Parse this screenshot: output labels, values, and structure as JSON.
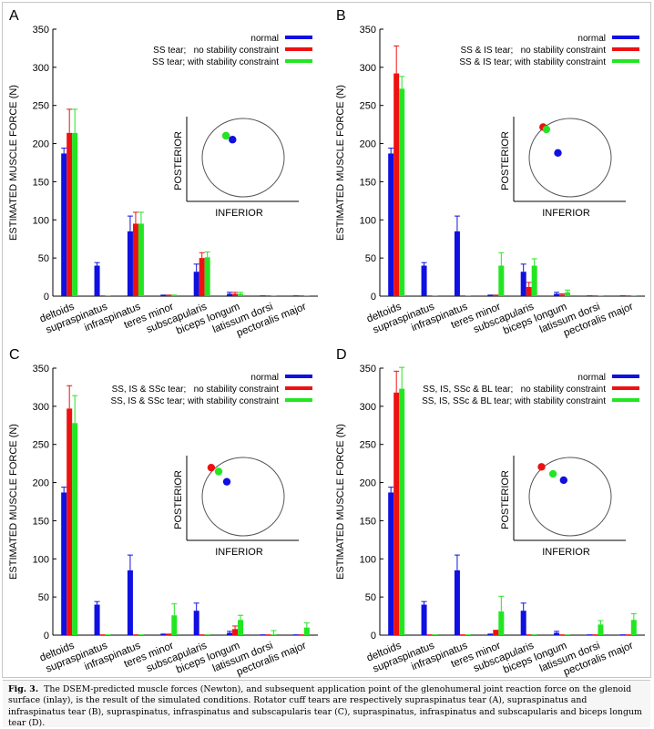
{
  "figure": {
    "caption_label": "Fig. 3.",
    "caption_text": "The DSEM-predicted muscle forces (Newton), and subsequent application point of the glenohumeral joint reaction force on the glenoid surface (inlay), is the result of the simulated conditions. Rotator cuff tears are respectively supraspinatus tear (A), supraspinatus and infraspinatus tear (B), supraspinatus, infraspinatus and subscapularis tear (C), supraspinatus, infraspinatus and subscapularis and biceps longum tear (D)."
  },
  "colors": {
    "normal": "#1010e0",
    "no_constraint": "#ee1111",
    "with_constraint": "#22e622",
    "ellipse": "#555555"
  },
  "chart_data": [
    {
      "type": "bar",
      "panel": "A",
      "ylabel": "ESTIMATED MUSCLE FORCE (N)",
      "ylim": [
        0,
        350
      ],
      "yticks": [
        0,
        50,
        100,
        150,
        200,
        250,
        300,
        350
      ],
      "categories": [
        "deltoids",
        "supraspinatus",
        "infraspinatus",
        "teres minor",
        "subscapularis",
        "biceps longum",
        "latissum dorsi",
        "pectoralis major"
      ],
      "legend_position": "top-right",
      "series": [
        {
          "name": "normal",
          "values": [
            187,
            40,
            85,
            2,
            32,
            3,
            1,
            1
          ],
          "errors": [
            7,
            4,
            20,
            0,
            10,
            2,
            0,
            0
          ]
        },
        {
          "name": "SS tear;   no stability constraint",
          "values": [
            214,
            1,
            95,
            2,
            50,
            3,
            1,
            1
          ],
          "errors": [
            31,
            0,
            15,
            0,
            7,
            2,
            0,
            0
          ]
        },
        {
          "name": "SS tear; with stability constraint",
          "values": [
            214,
            1,
            95,
            2,
            51,
            3,
            1,
            1
          ],
          "errors": [
            31,
            0,
            15,
            0,
            7,
            2,
            0,
            0
          ]
        }
      ],
      "inset": {
        "ylabel": "POSTERIOR",
        "xlabel": "INFERIOR",
        "points": [
          {
            "series": "no stability constraint",
            "x": 0.29,
            "y": 0.22
          },
          {
            "series": "with stability constraint",
            "x": 0.29,
            "y": 0.22
          },
          {
            "series": "normal",
            "x": 0.37,
            "y": 0.27
          }
        ]
      }
    },
    {
      "type": "bar",
      "panel": "B",
      "ylabel": "ESTIMATED MUSCLE FORCE (N)",
      "ylim": [
        0,
        350
      ],
      "yticks": [
        0,
        50,
        100,
        150,
        200,
        250,
        300,
        350
      ],
      "categories": [
        "deltoids",
        "supraspinatus",
        "infraspinatus",
        "teres minor",
        "subscapularis",
        "biceps longum",
        "latissum dorsi",
        "pectoralis major"
      ],
      "legend_position": "top-right",
      "series": [
        {
          "name": "normal",
          "values": [
            187,
            40,
            85,
            2,
            32,
            3,
            1,
            1
          ],
          "errors": [
            7,
            4,
            20,
            0,
            10,
            2,
            0,
            0
          ]
        },
        {
          "name": "SS & IS tear;   no stability constraint",
          "values": [
            292,
            1,
            1,
            2,
            12,
            2,
            1,
            1
          ],
          "errors": [
            36,
            0,
            0,
            0,
            6,
            1,
            0,
            0
          ]
        },
        {
          "name": "SS & IS tear; with stability constraint",
          "values": [
            272,
            1,
            1,
            40,
            40,
            5,
            1,
            1
          ],
          "errors": [
            16,
            0,
            0,
            17,
            9,
            3,
            0,
            0
          ]
        }
      ],
      "inset": {
        "ylabel": "POSTERIOR",
        "xlabel": "INFERIOR",
        "points": [
          {
            "series": "no stability constraint",
            "x": 0.17,
            "y": 0.11
          },
          {
            "series": "with stability constraint",
            "x": 0.21,
            "y": 0.14
          },
          {
            "series": "normal",
            "x": 0.35,
            "y": 0.44
          }
        ]
      }
    },
    {
      "type": "bar",
      "panel": "C",
      "ylabel": "ESTIMATED MUSCLE FORCE (N)",
      "ylim": [
        0,
        350
      ],
      "yticks": [
        0,
        50,
        100,
        150,
        200,
        250,
        300,
        350
      ],
      "categories": [
        "deltoids",
        "supraspinatus",
        "infraspinatus",
        "teres minor",
        "subscapularis",
        "biceps longum",
        "latissum dorsi",
        "pectoralis major"
      ],
      "legend_position": "top-right",
      "series": [
        {
          "name": "normal",
          "values": [
            187,
            40,
            85,
            2,
            32,
            3,
            1,
            1
          ],
          "errors": [
            7,
            4,
            20,
            0,
            10,
            2,
            0,
            0
          ]
        },
        {
          "name": "SS, IS & SSc tear;   no stability constraint",
          "values": [
            297,
            1,
            1,
            2,
            1,
            8,
            1,
            1
          ],
          "errors": [
            30,
            0,
            0,
            0,
            0,
            4,
            0,
            0
          ]
        },
        {
          "name": "SS, IS & SSc tear; with stability constraint",
          "values": [
            278,
            1,
            1,
            26,
            1,
            20,
            1,
            10
          ],
          "errors": [
            36,
            0,
            0,
            15,
            0,
            6,
            5,
            6
          ]
        }
      ],
      "inset": {
        "ylabel": "POSTERIOR",
        "xlabel": "INFERIOR",
        "points": [
          {
            "series": "no stability constraint",
            "x": 0.11,
            "y": 0.13
          },
          {
            "series": "with stability constraint",
            "x": 0.2,
            "y": 0.18
          },
          {
            "series": "normal",
            "x": 0.3,
            "y": 0.31
          }
        ]
      }
    },
    {
      "type": "bar",
      "panel": "D",
      "ylabel": "ESTIMATED MUSCLE FORCE (N)",
      "ylim": [
        0,
        350
      ],
      "yticks": [
        0,
        50,
        100,
        150,
        200,
        250,
        300,
        350
      ],
      "categories": [
        "deltoids",
        "supraspinatus",
        "infraspinatus",
        "teres minor",
        "subscapularis",
        "biceps longum",
        "latissum dorsi",
        "pectoralis major"
      ],
      "legend_position": "top-right",
      "series": [
        {
          "name": "normal",
          "values": [
            187,
            40,
            85,
            2,
            32,
            3,
            1,
            1
          ],
          "errors": [
            7,
            4,
            20,
            0,
            10,
            2,
            0,
            0
          ]
        },
        {
          "name": "SS, IS, SSc & BL tear;   no stability constraint",
          "values": [
            318,
            1,
            1,
            7,
            1,
            1,
            1,
            1
          ],
          "errors": [
            28,
            0,
            0,
            0,
            0,
            0,
            0,
            0
          ]
        },
        {
          "name": "SS, IS, SSc & BL tear; with stability constraint",
          "values": [
            323,
            1,
            1,
            31,
            1,
            1,
            14,
            20
          ],
          "errors": [
            28,
            0,
            0,
            20,
            0,
            0,
            5,
            8
          ]
        }
      ],
      "inset": {
        "ylabel": "POSTERIOR",
        "xlabel": "INFERIOR",
        "points": [
          {
            "series": "no stability constraint",
            "x": 0.15,
            "y": 0.12
          },
          {
            "series": "with stability constraint",
            "x": 0.29,
            "y": 0.21
          },
          {
            "series": "normal",
            "x": 0.42,
            "y": 0.29
          }
        ]
      }
    }
  ]
}
